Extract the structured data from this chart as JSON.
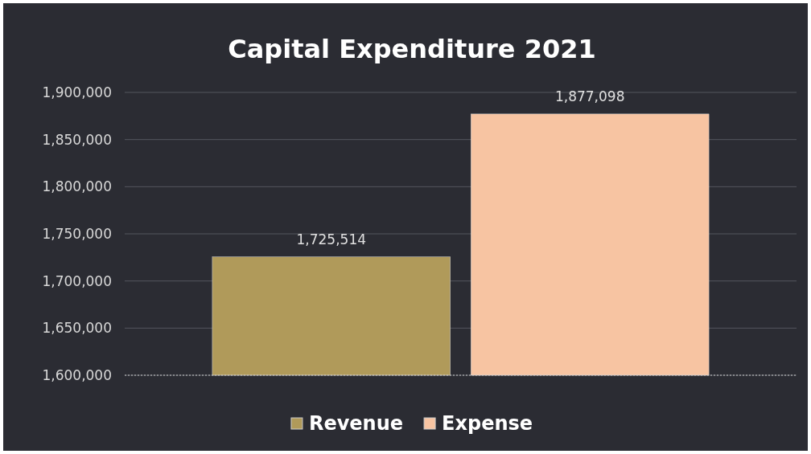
{
  "chart_data": {
    "type": "bar",
    "title": "Capital Expenditure  2021",
    "categories": [
      null
    ],
    "series": [
      {
        "name": "Revenue",
        "color": "#b09a5a",
        "values": [
          1725514
        ],
        "value_labels": [
          "1,725,514"
        ]
      },
      {
        "name": "Expense",
        "color": "#f7c4a2",
        "values": [
          1877098
        ],
        "value_labels": [
          "1,877,098"
        ]
      }
    ],
    "ylim": [
      1600000,
      1900000
    ],
    "yticks": [
      {
        "value": 1600000,
        "label": "1,600,000"
      },
      {
        "value": 1650000,
        "label": "1,650,000"
      },
      {
        "value": 1700000,
        "label": "1,700,000"
      },
      {
        "value": 1750000,
        "label": "1,750,000"
      },
      {
        "value": 1800000,
        "label": "1,800,000"
      },
      {
        "value": 1850000,
        "label": "1,850,000"
      },
      {
        "value": 1900000,
        "label": "1,900,000"
      }
    ],
    "grid": true,
    "legend": "bottom"
  }
}
